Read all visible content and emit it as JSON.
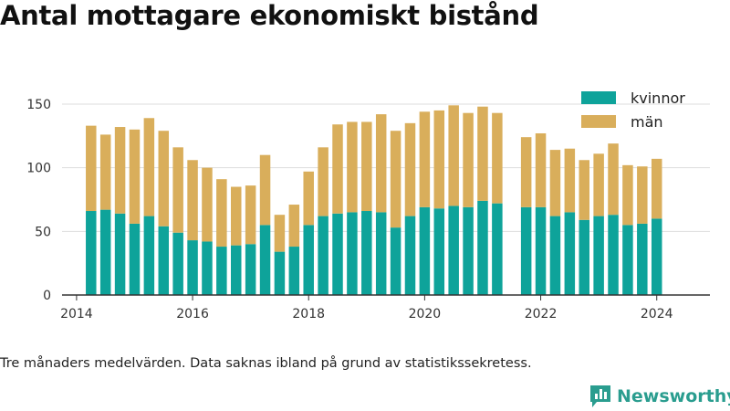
{
  "title": "Antal mottagare ekonomiskt bistånd",
  "note": "Tre månaders medelvärden. Data saknas ibland på grund av statistikssekretess.",
  "logo": {
    "text": "Newsworthy",
    "icon": "bar-chart-logo-icon"
  },
  "colors": {
    "kvinnor": "#0ea39a",
    "man": "#d9ae5b",
    "grid": "#dddddd",
    "axis": "#333333",
    "brand": "#2a9d8f"
  },
  "chart_data": {
    "type": "bar",
    "stacked": true,
    "x_dates": [
      "2014-04",
      "2014-07",
      "2014-10",
      "2015-01",
      "2015-04",
      "2015-07",
      "2015-10",
      "2016-01",
      "2016-04",
      "2016-07",
      "2016-10",
      "2017-01",
      "2017-04",
      "2017-07",
      "2017-10",
      "2018-01",
      "2018-04",
      "2018-07",
      "2018-10",
      "2019-01",
      "2019-04",
      "2019-07",
      "2019-10",
      "2020-01",
      "2020-04",
      "2020-07",
      "2020-10",
      "2021-01",
      "2021-04",
      "2021-10",
      "2022-01",
      "2022-04",
      "2022-07",
      "2022-10",
      "2023-01",
      "2023-04",
      "2023-07",
      "2023-10",
      "2024-01"
    ],
    "series": [
      {
        "name": "kvinnor",
        "values": [
          66,
          67,
          64,
          56,
          62,
          54,
          49,
          43,
          42,
          38,
          39,
          40,
          55,
          34,
          38,
          55,
          62,
          64,
          65,
          66,
          65,
          53,
          62,
          69,
          68,
          70,
          69,
          74,
          72,
          69,
          69,
          62,
          65,
          59,
          62,
          63,
          55,
          56,
          60
        ]
      },
      {
        "name": "män",
        "values": [
          67,
          59,
          68,
          74,
          77,
          75,
          67,
          63,
          58,
          53,
          46,
          46,
          55,
          29,
          33,
          42,
          54,
          70,
          71,
          70,
          77,
          76,
          73,
          75,
          77,
          79,
          74,
          74,
          71,
          55,
          58,
          52,
          50,
          47,
          49,
          56,
          47,
          45,
          47
        ]
      }
    ],
    "legend": {
      "position": "top-right",
      "entries": [
        "kvinnor",
        "män"
      ]
    },
    "y_ticks": [
      "0",
      "50",
      "100",
      "150"
    ],
    "x_ticks": [
      "2014",
      "2016",
      "2018",
      "2020",
      "2022",
      "2024"
    ],
    "ylim": [
      0,
      160
    ],
    "xlim": [
      "2013-10",
      "2024-12"
    ],
    "grid": "horizontal"
  }
}
